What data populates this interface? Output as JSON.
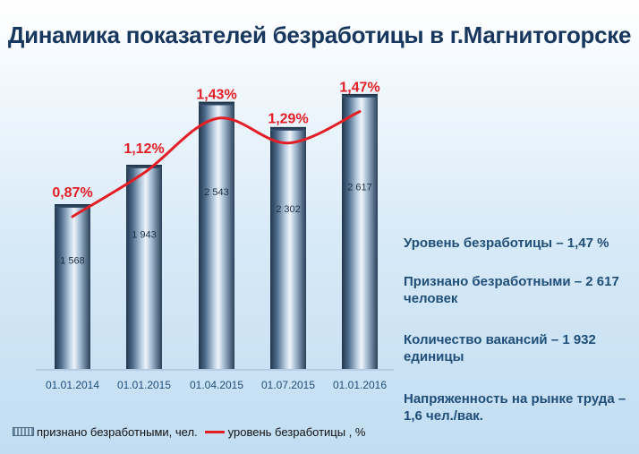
{
  "title": "Динамика показателей безработицы в г.Магнитогорске",
  "chart_data": {
    "type": "bar",
    "categories": [
      "01.01.2014",
      "01.01.2015",
      "01.04.2015",
      "01.07.2015",
      "01.01.2016"
    ],
    "series": [
      {
        "name": "признано безработными, чел.",
        "values": [
          1568,
          1943,
          2543,
          2302,
          2617
        ],
        "value_labels": [
          "1 568",
          "1 943",
          "2 543",
          "2 302",
          "2 617"
        ]
      },
      {
        "name": "уровень безработицы , %",
        "values": [
          0.87,
          1.12,
          1.43,
          1.29,
          1.47
        ],
        "value_labels": [
          "0,87%",
          "1,12%",
          "1,43%",
          "1,29%",
          "1,47%"
        ]
      }
    ],
    "ylim": [
      0,
      3000
    ],
    "ylim_secondary": [
      0,
      1.8
    ],
    "colors": {
      "bar": "#4a6a8a",
      "line": "#e31e24",
      "labels": "#e31e24",
      "axis_labels": "#1f4e79"
    }
  },
  "info": {
    "rate": "Уровень безработицы – 1,47 %",
    "recognized": "Признано безработными – 2 617 человек",
    "vacancies": "Количество вакансий – 1 932 единицы",
    "tension": "Напряженность на рынке труда – 1,6 чел./вак."
  },
  "legend": {
    "bars": "признано безработными, чел.",
    "line": "уровень безработицы , %"
  }
}
